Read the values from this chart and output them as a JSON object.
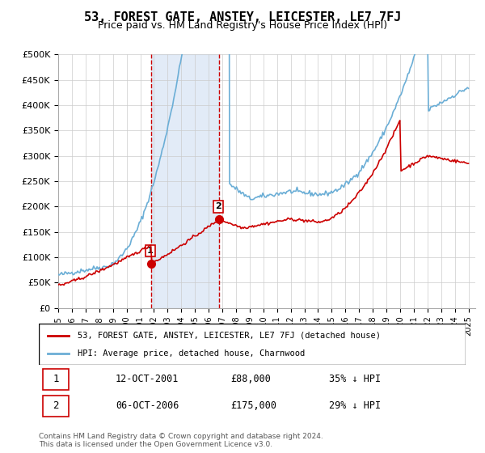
{
  "title": "53, FOREST GATE, ANSTEY, LEICESTER, LE7 7FJ",
  "subtitle": "Price paid vs. HM Land Registry's House Price Index (HPI)",
  "title_fontsize": 11,
  "subtitle_fontsize": 9,
  "ylim": [
    0,
    500000
  ],
  "yticks": [
    0,
    50000,
    100000,
    150000,
    200000,
    250000,
    300000,
    350000,
    400000,
    450000,
    500000
  ],
  "ytick_labels": [
    "£0",
    "£50K",
    "£100K",
    "£150K",
    "£200K",
    "£250K",
    "£300K",
    "£350K",
    "£400K",
    "£450K",
    "£500K"
  ],
  "hpi_color": "#6baed6",
  "price_color": "#cc0000",
  "bg_color": "#ffffff",
  "plot_bg_color": "#ffffff",
  "grid_color": "#cccccc",
  "sale1_date_num": 2001.79,
  "sale1_price": 88000,
  "sale1_label": "1",
  "sale2_date_num": 2006.77,
  "sale2_price": 175000,
  "sale2_label": "2",
  "shade_color": "#c6d9f0",
  "shade_alpha": 0.5,
  "vline_color": "#cc0000",
  "vline_style": "--",
  "legend_entry1": "53, FOREST GATE, ANSTEY, LEICESTER, LE7 7FJ (detached house)",
  "legend_entry2": "HPI: Average price, detached house, Charnwood",
  "table_row1": [
    "1",
    "12-OCT-2001",
    "£88,000",
    "35% ↓ HPI"
  ],
  "table_row2": [
    "2",
    "06-OCT-2006",
    "£175,000",
    "29% ↓ HPI"
  ],
  "footnote": "Contains HM Land Registry data © Crown copyright and database right 2024.\nThis data is licensed under the Open Government Licence v3.0.",
  "xlabel_fontsize": 7.5,
  "ylabel_fontsize": 8
}
